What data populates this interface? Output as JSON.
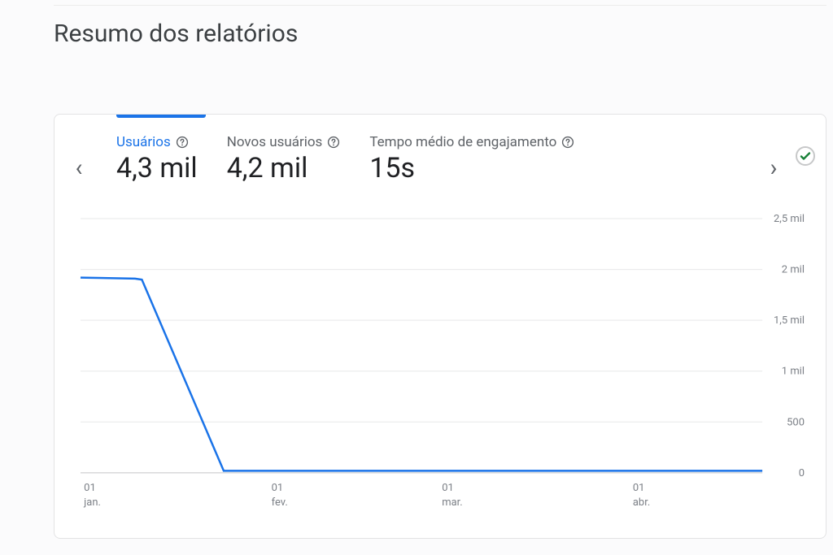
{
  "page": {
    "title": "Resumo dos relatórios",
    "background_color": "#fbfbfc"
  },
  "card": {
    "background_color": "#ffffff",
    "border_color": "#e3e3e4",
    "tab_indicator_color": "#1a73e8",
    "status_ok": true,
    "status_colors": {
      "ring": "#c7c8c9",
      "check": "#188038"
    },
    "nav": {
      "prev_glyph": "‹",
      "next_glyph": "›"
    },
    "metrics": [
      {
        "id": "users",
        "label": "Usuários",
        "value": "4,3 mil",
        "active": true
      },
      {
        "id": "new-users",
        "label": "Novos usuários",
        "value": "4,2 mil",
        "active": false
      },
      {
        "id": "engagement",
        "label": "Tempo médio de engajamento",
        "value": "15s",
        "active": false
      }
    ],
    "label_fontsize": 17,
    "value_fontsize": 34,
    "active_label_color": "#1a73e8",
    "label_color": "#5f6368",
    "value_color": "#202124"
  },
  "chart": {
    "type": "line",
    "series_color": "#1a73e8",
    "line_width": 2.5,
    "grid_color": "#e7e8e9",
    "baseline_color": "#c4c5c7",
    "background_color": "#ffffff",
    "ytick_font_color": "#7c8087",
    "xtick_font_color": "#7c8087",
    "tick_fontsize": 13,
    "x_domain": [
      0,
      100
    ],
    "y_domain": [
      0,
      2500
    ],
    "y_ticks": [
      {
        "v": 0,
        "label": "0"
      },
      {
        "v": 500,
        "label": "500"
      },
      {
        "v": 1000,
        "label": "1 mil"
      },
      {
        "v": 1500,
        "label": "1,5 mil"
      },
      {
        "v": 2000,
        "label": "2 mil"
      },
      {
        "v": 2500,
        "label": "2,5 mil"
      }
    ],
    "x_ticks": [
      {
        "v": 0.5,
        "day": "01",
        "month": "jan."
      },
      {
        "v": 28,
        "day": "01",
        "month": "fev."
      },
      {
        "v": 53,
        "day": "01",
        "month": "mar."
      },
      {
        "v": 81,
        "day": "01",
        "month": "abr."
      }
    ],
    "series": [
      {
        "x": 0,
        "y": 1920
      },
      {
        "x": 8,
        "y": 1910
      },
      {
        "x": 9,
        "y": 1900
      },
      {
        "x": 21,
        "y": 20
      },
      {
        "x": 100,
        "y": 20
      }
    ]
  }
}
